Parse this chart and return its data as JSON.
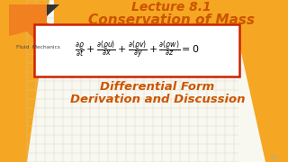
{
  "bg_color_main": "#f5f5f0",
  "bg_color_orange": "#f5a623",
  "grid_color": "#ccccbb",
  "title1": "Lecture 8.1",
  "title2": "Conservation of Mass",
  "subtitle1": "Differential Form",
  "subtitle2": "Derivation and Discussion",
  "text_color": "#e07010",
  "box_color": "#cc2200",
  "logo_color": "#555555",
  "logo_shape_color": "#f5a623",
  "watermark": "36"
}
